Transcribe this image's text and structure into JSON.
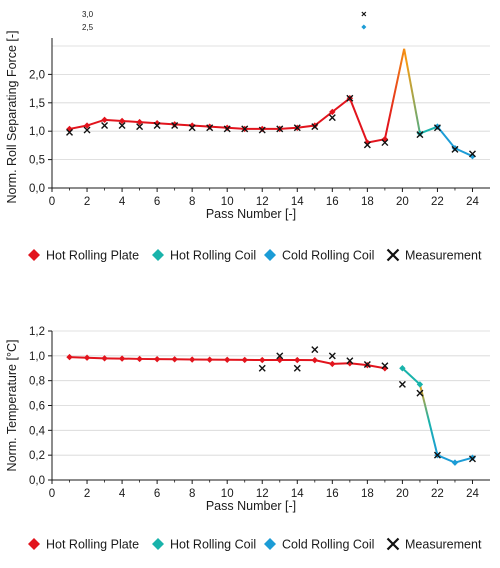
{
  "palette": {
    "hot_plate": "#e2141d",
    "hot_coil": "#19b3ab",
    "cold_coil": "#1c9cd6",
    "measurement": "#111111",
    "transition": "#f59d14",
    "axis": "#1a1a1a"
  },
  "chart_data": [
    {
      "type": "line",
      "ylabel": "Norm. Roll Separating Force [-]",
      "xlabel": "Pass Number [-]",
      "xlim": [
        0,
        25
      ],
      "ylim": [
        0,
        2.5
      ],
      "x_ticks": [
        0,
        2,
        4,
        6,
        8,
        10,
        12,
        14,
        16,
        18,
        20,
        22,
        24
      ],
      "x_tick_labels": [
        "0",
        "2",
        "4",
        "6",
        "8",
        "10",
        "12",
        "14",
        "16",
        "18",
        "20",
        "22",
        "24"
      ],
      "y_ticks": [
        0,
        0.5,
        1.0,
        1.5,
        2.0
      ],
      "y_tick_labels": [
        "0,0",
        "0,5",
        "1,0",
        "1,5",
        "2,0"
      ],
      "grid": "horizontal",
      "legend": "below",
      "offscale_markers": [
        {
          "series": "Measurement",
          "label": "3,0"
        },
        {
          "series": "Cold Rolling Coil",
          "label": "2,5"
        }
      ],
      "series": [
        {
          "name": "Hot Rolling Plate",
          "marker": "diamond",
          "x": [
            1,
            2,
            3,
            4,
            5,
            6,
            7,
            8,
            9,
            10,
            11,
            12,
            13,
            14,
            15,
            16,
            17,
            18,
            19
          ],
          "y": [
            1.04,
            1.1,
            1.2,
            1.18,
            1.16,
            1.14,
            1.12,
            1.1,
            1.08,
            1.06,
            1.04,
            1.04,
            1.04,
            1.06,
            1.1,
            1.34,
            1.58,
            0.8,
            0.86
          ]
        },
        {
          "name": "Hot Rolling Coil",
          "marker": "diamond",
          "x": [
            21,
            22
          ],
          "y": [
            0.96,
            1.08
          ]
        },
        {
          "name": "Cold Rolling Coil",
          "marker": "diamond",
          "x": [
            22,
            23,
            24
          ],
          "y": [
            1.08,
            0.7,
            0.56
          ]
        },
        {
          "name": "Measurement",
          "marker": "x",
          "x": [
            1,
            2,
            3,
            4,
            5,
            6,
            7,
            8,
            9,
            10,
            11,
            12,
            13,
            14,
            15,
            16,
            17,
            18,
            19,
            21,
            22,
            23,
            24
          ],
          "y": [
            0.98,
            1.02,
            1.1,
            1.1,
            1.08,
            1.1,
            1.1,
            1.06,
            1.06,
            1.04,
            1.04,
            1.02,
            1.04,
            1.06,
            1.08,
            1.24,
            1.58,
            0.76,
            0.8,
            0.94,
            1.06,
            0.68,
            0.6
          ]
        }
      ],
      "connector_x": [
        19,
        20.1,
        21
      ],
      "connector_y": [
        0.86,
        2.45,
        0.96
      ]
    },
    {
      "type": "line",
      "ylabel": "Norm. Temperature [°C]",
      "xlabel": "Pass Number [-]",
      "xlim": [
        0,
        25
      ],
      "ylim": [
        0,
        1.2
      ],
      "x_ticks": [
        0,
        2,
        4,
        6,
        8,
        10,
        12,
        14,
        16,
        18,
        20,
        22,
        24
      ],
      "x_tick_labels": [
        "0",
        "2",
        "4",
        "6",
        "8",
        "10",
        "12",
        "14",
        "16",
        "18",
        "20",
        "22",
        "24"
      ],
      "y_ticks": [
        0,
        0.2,
        0.4,
        0.6,
        0.8,
        1.0,
        1.2
      ],
      "y_tick_labels": [
        "0,0",
        "0,2",
        "0,4",
        "0,6",
        "0,8",
        "1,0",
        "1,2"
      ],
      "grid": "horizontal",
      "legend": "below",
      "series": [
        {
          "name": "Hot Rolling Plate",
          "marker": "diamond",
          "x": [
            1,
            2,
            3,
            4,
            5,
            6,
            7,
            8,
            9,
            10,
            11,
            12,
            13,
            14,
            15,
            16,
            17,
            18,
            19
          ],
          "y": [
            0.99,
            0.985,
            0.98,
            0.978,
            0.975,
            0.973,
            0.972,
            0.97,
            0.969,
            0.968,
            0.967,
            0.966,
            0.966,
            0.966,
            0.965,
            0.935,
            0.94,
            0.925,
            0.9
          ]
        },
        {
          "name": "Hot Rolling Coil",
          "marker": "diamond",
          "x": [
            20,
            21
          ],
          "y": [
            0.9,
            0.77
          ]
        },
        {
          "name": "Cold Rolling Coil",
          "marker": "diamond",
          "x": [
            22,
            23,
            24
          ],
          "y": [
            0.2,
            0.14,
            0.18
          ]
        },
        {
          "name": "Measurement",
          "marker": "x",
          "x": [
            12,
            13,
            14,
            15,
            16,
            17,
            18,
            19,
            20,
            21,
            22,
            24
          ],
          "y": [
            0.9,
            1.0,
            0.9,
            1.05,
            1.0,
            0.96,
            0.93,
            0.92,
            0.77,
            0.7,
            0.2,
            0.17
          ]
        }
      ],
      "connector_x": [
        21,
        22
      ],
      "connector_y": [
        0.77,
        0.2
      ]
    }
  ]
}
